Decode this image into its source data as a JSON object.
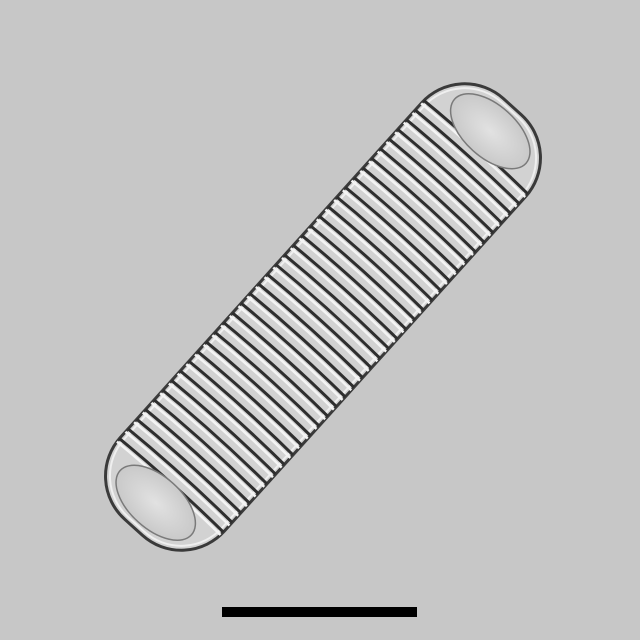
{
  "image": {
    "subject": "diatom-frustule",
    "background_color": "#c7c7c7",
    "shell_fill": "#d2d2d2",
    "shell_outline": "#3a3a3a",
    "striae_dark": "#2e2e2e",
    "striae_light": "#f4f4f4",
    "scale_bar_color": "#000000"
  }
}
